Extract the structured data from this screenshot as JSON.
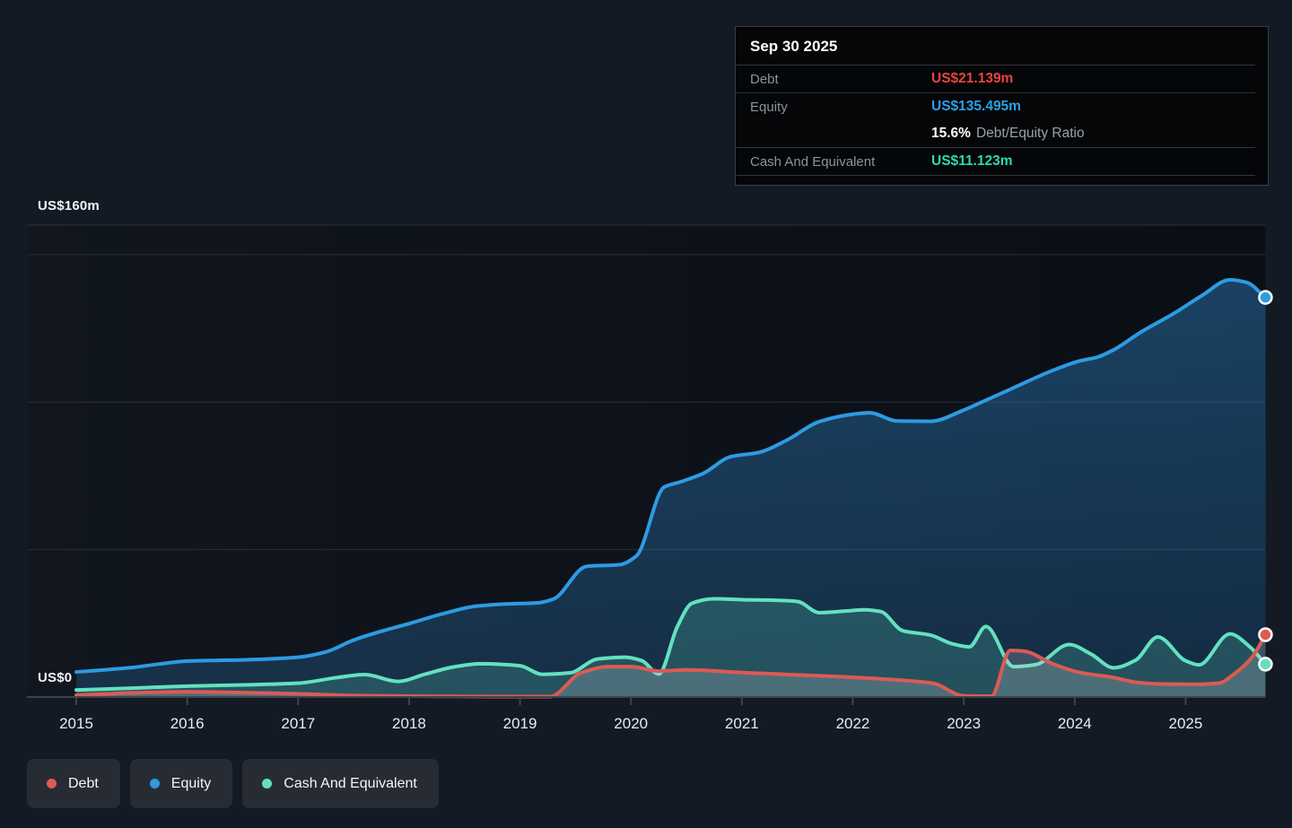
{
  "axis_labels": {
    "top": "US$160m",
    "zero": "US$0"
  },
  "tooltip": {
    "date": "Sep 30 2025",
    "debt_label": "Debt",
    "debt_value": "US$21.139m",
    "equity_label": "Equity",
    "equity_value": "US$135.495m",
    "ratio_value": "15.6%",
    "ratio_label": "Debt/Equity Ratio",
    "cash_label": "Cash And Equivalent",
    "cash_value": "US$11.123m"
  },
  "legend": {
    "items": [
      {
        "id": "debt",
        "label": "Debt"
      },
      {
        "id": "equity",
        "label": "Equity"
      },
      {
        "id": "cash",
        "label": "Cash And Equivalent"
      }
    ]
  },
  "colors": {
    "debt": "#dd5a54",
    "equity": "#2d9be2",
    "cash": "#63e1bf",
    "debt_text": "#e8453f",
    "equity_text": "#2e9fe6",
    "cash_text": "#2fd7b0",
    "debt_fill": "rgba(212,212,220,0.22)",
    "equity_fill_top": "rgba(44,126,190,0.46)",
    "equity_fill_bottom": "rgba(44,126,190,0.26)",
    "cash_fill": "rgba(100,224,194,0.20)",
    "grid": "#2a3039",
    "axis": "#3d444f",
    "tick_label": "#e8ecf0",
    "plot_bg_left": "#11161f",
    "plot_bg_right": "#0a0e15",
    "marker_ring": "#ffffff"
  },
  "chart_data": {
    "type": "area",
    "unit": "US$m",
    "ylim": [
      0,
      160
    ],
    "gridline_values": [
      50,
      100,
      150,
      160
    ],
    "x_ticks": [
      "2015",
      "2016",
      "2017",
      "2018",
      "2019",
      "2020",
      "2021",
      "2022",
      "2023",
      "2024",
      "2025"
    ],
    "x_end": 2025.72,
    "legend_position": "bottom-left",
    "series": [
      {
        "id": "equity",
        "name": "Equity",
        "end_value": 135.495,
        "points": [
          [
            2015.0,
            8.5
          ],
          [
            2015.25,
            9.2
          ],
          [
            2015.5,
            10.0
          ],
          [
            2015.75,
            11.2
          ],
          [
            2016.0,
            12.2
          ],
          [
            2016.5,
            12.6
          ],
          [
            2017.0,
            13.5
          ],
          [
            2017.25,
            15.3
          ],
          [
            2017.5,
            19.3
          ],
          [
            2017.75,
            22.3
          ],
          [
            2018.0,
            24.9
          ],
          [
            2018.3,
            28.2
          ],
          [
            2018.6,
            30.8
          ],
          [
            2018.9,
            31.6
          ],
          [
            2019.15,
            31.9
          ],
          [
            2019.3,
            33.2
          ],
          [
            2019.6,
            44.3
          ],
          [
            2019.9,
            44.9
          ],
          [
            2020.05,
            47.9
          ],
          [
            2020.3,
            71.2
          ],
          [
            2020.45,
            73.0
          ],
          [
            2020.65,
            75.8
          ],
          [
            2020.9,
            81.5
          ],
          [
            2021.15,
            82.9
          ],
          [
            2021.4,
            87.0
          ],
          [
            2021.7,
            93.4
          ],
          [
            2022.0,
            95.9
          ],
          [
            2022.15,
            96.4
          ],
          [
            2022.4,
            93.6
          ],
          [
            2022.7,
            93.5
          ],
          [
            2023.0,
            97.3
          ],
          [
            2023.15,
            99.8
          ],
          [
            2023.4,
            104.0
          ],
          [
            2023.8,
            110.7
          ],
          [
            2024.05,
            114.0
          ],
          [
            2024.2,
            115.2
          ],
          [
            2024.35,
            117.7
          ],
          [
            2024.6,
            123.8
          ],
          [
            2024.9,
            130.2
          ],
          [
            2025.15,
            136.2
          ],
          [
            2025.4,
            141.5
          ],
          [
            2025.55,
            140.6
          ],
          [
            2025.72,
            135.495
          ]
        ]
      },
      {
        "id": "cash",
        "name": "Cash And Equivalent",
        "end_value": 11.123,
        "points": [
          [
            2015.0,
            2.4
          ],
          [
            2015.5,
            3.0
          ],
          [
            2016.0,
            3.7
          ],
          [
            2016.5,
            4.1
          ],
          [
            2017.0,
            4.7
          ],
          [
            2017.35,
            6.6
          ],
          [
            2017.6,
            7.6
          ],
          [
            2017.9,
            5.3
          ],
          [
            2018.15,
            7.8
          ],
          [
            2018.4,
            10.2
          ],
          [
            2018.65,
            11.3
          ],
          [
            2019.0,
            10.6
          ],
          [
            2019.2,
            7.7
          ],
          [
            2019.45,
            8.2
          ],
          [
            2019.7,
            12.9
          ],
          [
            2019.95,
            13.5
          ],
          [
            2020.1,
            12.3
          ],
          [
            2020.25,
            7.8
          ],
          [
            2020.42,
            24.0
          ],
          [
            2020.55,
            31.8
          ],
          [
            2020.75,
            33.3
          ],
          [
            2021.0,
            33.0
          ],
          [
            2021.3,
            32.8
          ],
          [
            2021.5,
            32.4
          ],
          [
            2021.7,
            28.6
          ],
          [
            2021.95,
            29.2
          ],
          [
            2022.1,
            29.6
          ],
          [
            2022.25,
            29.0
          ],
          [
            2022.45,
            22.5
          ],
          [
            2022.7,
            21.0
          ],
          [
            2022.9,
            18.0
          ],
          [
            2023.05,
            17.0
          ],
          [
            2023.2,
            23.9
          ],
          [
            2023.45,
            10.3
          ],
          [
            2023.65,
            11.0
          ],
          [
            2023.95,
            17.8
          ],
          [
            2024.15,
            14.5
          ],
          [
            2024.35,
            9.9
          ],
          [
            2024.55,
            12.5
          ],
          [
            2024.75,
            20.4
          ],
          [
            2025.0,
            12.3
          ],
          [
            2025.12,
            10.9
          ],
          [
            2025.4,
            21.4
          ],
          [
            2025.58,
            17.0
          ],
          [
            2025.72,
            11.123
          ]
        ]
      },
      {
        "id": "debt",
        "name": "Debt",
        "end_value": 21.139,
        "points": [
          [
            2015.0,
            0.6
          ],
          [
            2015.5,
            1.4
          ],
          [
            2016.0,
            1.8
          ],
          [
            2016.5,
            1.5
          ],
          [
            2017.0,
            1.1
          ],
          [
            2017.5,
            0.5
          ],
          [
            2018.0,
            0.3
          ],
          [
            2018.5,
            0.2
          ],
          [
            2019.0,
            0.15
          ],
          [
            2019.27,
            0.15
          ],
          [
            2019.55,
            8.2
          ],
          [
            2019.8,
            10.3
          ],
          [
            2020.0,
            10.3
          ],
          [
            2020.25,
            8.8
          ],
          [
            2020.5,
            9.2
          ],
          [
            2021.0,
            8.3
          ],
          [
            2021.5,
            7.5
          ],
          [
            2022.0,
            6.7
          ],
          [
            2022.4,
            5.8
          ],
          [
            2022.72,
            4.7
          ],
          [
            2023.0,
            0.4
          ],
          [
            2023.25,
            0.3
          ],
          [
            2023.42,
            15.8
          ],
          [
            2023.55,
            15.5
          ],
          [
            2023.8,
            11.3
          ],
          [
            2024.05,
            8.3
          ],
          [
            2024.35,
            6.6
          ],
          [
            2024.55,
            5.0
          ],
          [
            2024.8,
            4.4
          ],
          [
            2025.1,
            4.3
          ],
          [
            2025.3,
            4.7
          ],
          [
            2025.45,
            8.2
          ],
          [
            2025.6,
            13.5
          ],
          [
            2025.72,
            21.139
          ]
        ]
      }
    ]
  }
}
